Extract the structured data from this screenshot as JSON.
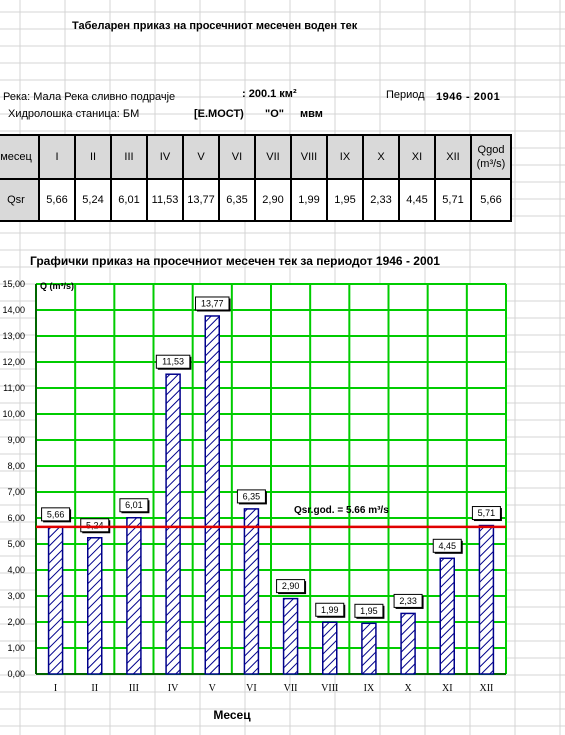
{
  "header": {
    "title": "Табеларен приказ на просечниот месечен воден тек",
    "river": "Река: Мала Река сливно подрачје",
    "area": ": 200.1 км²",
    "period_label": "Период",
    "period_value": "1946 - 2001",
    "station_label": "Хидролошка станица: БМ",
    "station_name": "[Е.МОСТ)",
    "station_code": "\"О\"",
    "station_unit": "мвм"
  },
  "table": {
    "row_header_label": "месец",
    "row_value_label": "Qsr",
    "months": [
      "I",
      "II",
      "III",
      "IV",
      "V",
      "VI",
      "VII",
      "VIII",
      "IX",
      "X",
      "XI",
      "XII"
    ],
    "values": [
      "5,66",
      "5,24",
      "6,01",
      "11,53",
      "13,77",
      "6,35",
      "2,90",
      "1,99",
      "1,95",
      "2,33",
      "4,45",
      "5,71"
    ],
    "annual_header_line1": "Qgod",
    "annual_header_line2": "(m³/s)",
    "annual_value": "5,66"
  },
  "chart_title": "Графички приказ на просечниот месечен тек за периодот 1946 - 2001",
  "chart_data": {
    "type": "bar",
    "title": "Графички приказ на просечниот месечен тек за периодот 1946 - 2001",
    "ylabel": "Q (m³/s)",
    "xlabel": "Месец",
    "categories": [
      "I",
      "II",
      "III",
      "IV",
      "V",
      "VI",
      "VII",
      "VIII",
      "IX",
      "X",
      "XI",
      "XII"
    ],
    "values": [
      5.66,
      5.24,
      6.01,
      11.53,
      13.77,
      6.35,
      2.9,
      1.99,
      1.95,
      2.33,
      4.45,
      5.71
    ],
    "data_labels": [
      "5,66",
      "5,24",
      "6,01",
      "11,53",
      "13,77",
      "6,35",
      "2,90",
      "1,99",
      "1,95",
      "2,33",
      "4,45",
      "5,71"
    ],
    "ylim": [
      0,
      15
    ],
    "ytick_step": 1,
    "ytick_labels": [
      "0,00",
      "1,00",
      "2,00",
      "3,00",
      "4,00",
      "5,00",
      "6,00",
      "7,00",
      "8,00",
      "9,00",
      "10,00",
      "11,00",
      "12,00",
      "13,00",
      "14,00",
      "15,00"
    ],
    "grid": true,
    "mean_line": {
      "value": 5.66,
      "label": "Qsr.god. = 5.66 m³/s"
    },
    "colors": {
      "grid": "#00cc00",
      "bar_edge": "#00008b",
      "hatch": "#00008b",
      "mean_line": "#e00000"
    }
  }
}
